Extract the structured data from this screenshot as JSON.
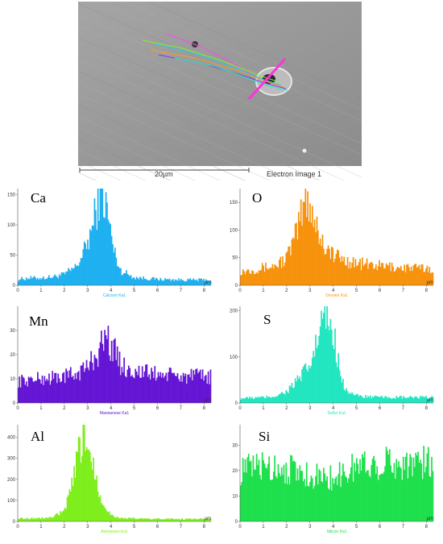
{
  "image": {
    "scale_bar_label": "20µm",
    "caption": "Electron Image 1"
  },
  "colors": {
    "axis": "#555555",
    "sem_background": "#9a9a9a"
  },
  "chart_data": [
    {
      "type": "bar",
      "element": "Ca",
      "series_label": "Calcium Ka1",
      "color": "#1fb0f0",
      "xlabel": "µm",
      "xlim": [
        0,
        8.3
      ],
      "ylim": [
        0,
        160
      ],
      "yticks": [
        0,
        50,
        100,
        150
      ],
      "xticks": [
        0,
        1,
        2,
        3,
        4,
        5,
        6,
        7,
        8
      ],
      "peak_profile": [
        {
          "x": 0.0,
          "y": 10
        },
        {
          "x": 0.5,
          "y": 12
        },
        {
          "x": 1.0,
          "y": 12
        },
        {
          "x": 1.5,
          "y": 14
        },
        {
          "x": 2.0,
          "y": 18
        },
        {
          "x": 2.5,
          "y": 30
        },
        {
          "x": 2.9,
          "y": 60
        },
        {
          "x": 3.2,
          "y": 95
        },
        {
          "x": 3.5,
          "y": 150
        },
        {
          "x": 3.7,
          "y": 145
        },
        {
          "x": 3.9,
          "y": 110
        },
        {
          "x": 4.1,
          "y": 60
        },
        {
          "x": 4.4,
          "y": 25
        },
        {
          "x": 5.0,
          "y": 13
        },
        {
          "x": 6.0,
          "y": 10
        },
        {
          "x": 7.0,
          "y": 9
        },
        {
          "x": 8.3,
          "y": 9
        }
      ]
    },
    {
      "type": "bar",
      "element": "O",
      "series_label": "Oxygen Ka1",
      "color": "#f7920c",
      "xlabel": "µm",
      "xlim": [
        0,
        8.3
      ],
      "ylim": [
        0,
        175
      ],
      "yticks": [
        0,
        50,
        100,
        150
      ],
      "xticks": [
        0,
        1,
        2,
        3,
        4,
        5,
        6,
        7,
        8
      ],
      "peak_profile": [
        {
          "x": 0.0,
          "y": 25
        },
        {
          "x": 0.5,
          "y": 28
        },
        {
          "x": 1.0,
          "y": 32
        },
        {
          "x": 1.5,
          "y": 35
        },
        {
          "x": 2.0,
          "y": 50
        },
        {
          "x": 2.4,
          "y": 90
        },
        {
          "x": 2.7,
          "y": 140
        },
        {
          "x": 2.9,
          "y": 160
        },
        {
          "x": 3.2,
          "y": 120
        },
        {
          "x": 3.5,
          "y": 80
        },
        {
          "x": 4.0,
          "y": 55
        },
        {
          "x": 4.5,
          "y": 45
        },
        {
          "x": 5.0,
          "y": 40
        },
        {
          "x": 6.0,
          "y": 35
        },
        {
          "x": 7.0,
          "y": 32
        },
        {
          "x": 8.3,
          "y": 30
        }
      ]
    },
    {
      "type": "bar",
      "element": "Mn",
      "series_label": "Manganese Ka1",
      "color": "#6515d4",
      "xlabel": "µm",
      "xlim": [
        0,
        8.3
      ],
      "ylim": [
        0,
        40
      ],
      "yticks": [
        0,
        10,
        20,
        30
      ],
      "xticks": [
        0,
        1,
        2,
        3,
        4,
        5,
        6,
        7,
        8
      ],
      "peak_profile": [
        {
          "x": 0.0,
          "y": 9
        },
        {
          "x": 1.0,
          "y": 10
        },
        {
          "x": 2.0,
          "y": 11
        },
        {
          "x": 2.5,
          "y": 12
        },
        {
          "x": 3.0,
          "y": 15
        },
        {
          "x": 3.5,
          "y": 22
        },
        {
          "x": 3.8,
          "y": 28
        },
        {
          "x": 4.1,
          "y": 22
        },
        {
          "x": 4.5,
          "y": 15
        },
        {
          "x": 5.0,
          "y": 13
        },
        {
          "x": 6.0,
          "y": 12
        },
        {
          "x": 7.0,
          "y": 11
        },
        {
          "x": 8.3,
          "y": 11
        }
      ]
    },
    {
      "type": "bar",
      "element": "S",
      "series_label": "Sulfur Ka1",
      "color": "#22e6c0",
      "xlabel": "µm",
      "xlim": [
        0,
        8.3
      ],
      "ylim": [
        0,
        210
      ],
      "yticks": [
        0,
        100,
        200
      ],
      "xticks": [
        0,
        1,
        2,
        3,
        4,
        5,
        6,
        7,
        8
      ],
      "peak_profile": [
        {
          "x": 0.0,
          "y": 10
        },
        {
          "x": 1.0,
          "y": 12
        },
        {
          "x": 1.5,
          "y": 15
        },
        {
          "x": 2.0,
          "y": 25
        },
        {
          "x": 2.5,
          "y": 50
        },
        {
          "x": 3.0,
          "y": 80
        },
        {
          "x": 3.3,
          "y": 130
        },
        {
          "x": 3.6,
          "y": 190
        },
        {
          "x": 3.9,
          "y": 175
        },
        {
          "x": 4.2,
          "y": 100
        },
        {
          "x": 4.5,
          "y": 30
        },
        {
          "x": 5.0,
          "y": 15
        },
        {
          "x": 6.0,
          "y": 12
        },
        {
          "x": 7.0,
          "y": 12
        },
        {
          "x": 8.3,
          "y": 12
        }
      ]
    },
    {
      "type": "bar",
      "element": "Al",
      "series_label": "Aluminium Ka1",
      "color": "#7fee1d",
      "xlabel": "µm",
      "xlim": [
        0,
        8.3
      ],
      "ylim": [
        0,
        460
      ],
      "yticks": [
        0,
        100,
        200,
        300,
        400
      ],
      "xticks": [
        0,
        1,
        2,
        3,
        4,
        5,
        6,
        7,
        8
      ],
      "peak_profile": [
        {
          "x": 0.0,
          "y": 15
        },
        {
          "x": 1.0,
          "y": 15
        },
        {
          "x": 1.5,
          "y": 20
        },
        {
          "x": 2.0,
          "y": 50
        },
        {
          "x": 2.3,
          "y": 150
        },
        {
          "x": 2.6,
          "y": 320
        },
        {
          "x": 2.8,
          "y": 420
        },
        {
          "x": 3.0,
          "y": 380
        },
        {
          "x": 3.3,
          "y": 250
        },
        {
          "x": 3.6,
          "y": 100
        },
        {
          "x": 4.0,
          "y": 30
        },
        {
          "x": 4.5,
          "y": 15
        },
        {
          "x": 6.0,
          "y": 12
        },
        {
          "x": 8.3,
          "y": 12
        }
      ]
    },
    {
      "type": "bar",
      "element": "Si",
      "series_label": "Silicon Ka1",
      "color": "#1ee04c",
      "xlabel": "µm",
      "xlim": [
        0,
        8.3
      ],
      "ylim": [
        0,
        38
      ],
      "yticks": [
        0,
        10,
        20,
        30
      ],
      "xticks": [
        0,
        1,
        2,
        3,
        4,
        5,
        6,
        7,
        8
      ],
      "peak_profile": [
        {
          "x": 0.0,
          "y": 20
        },
        {
          "x": 1.0,
          "y": 22
        },
        {
          "x": 2.0,
          "y": 21
        },
        {
          "x": 3.0,
          "y": 18
        },
        {
          "x": 4.0,
          "y": 17
        },
        {
          "x": 4.5,
          "y": 19
        },
        {
          "x": 5.0,
          "y": 22
        },
        {
          "x": 6.0,
          "y": 23
        },
        {
          "x": 7.0,
          "y": 23
        },
        {
          "x": 8.0,
          "y": 23
        },
        {
          "x": 8.3,
          "y": 22
        }
      ]
    }
  ]
}
